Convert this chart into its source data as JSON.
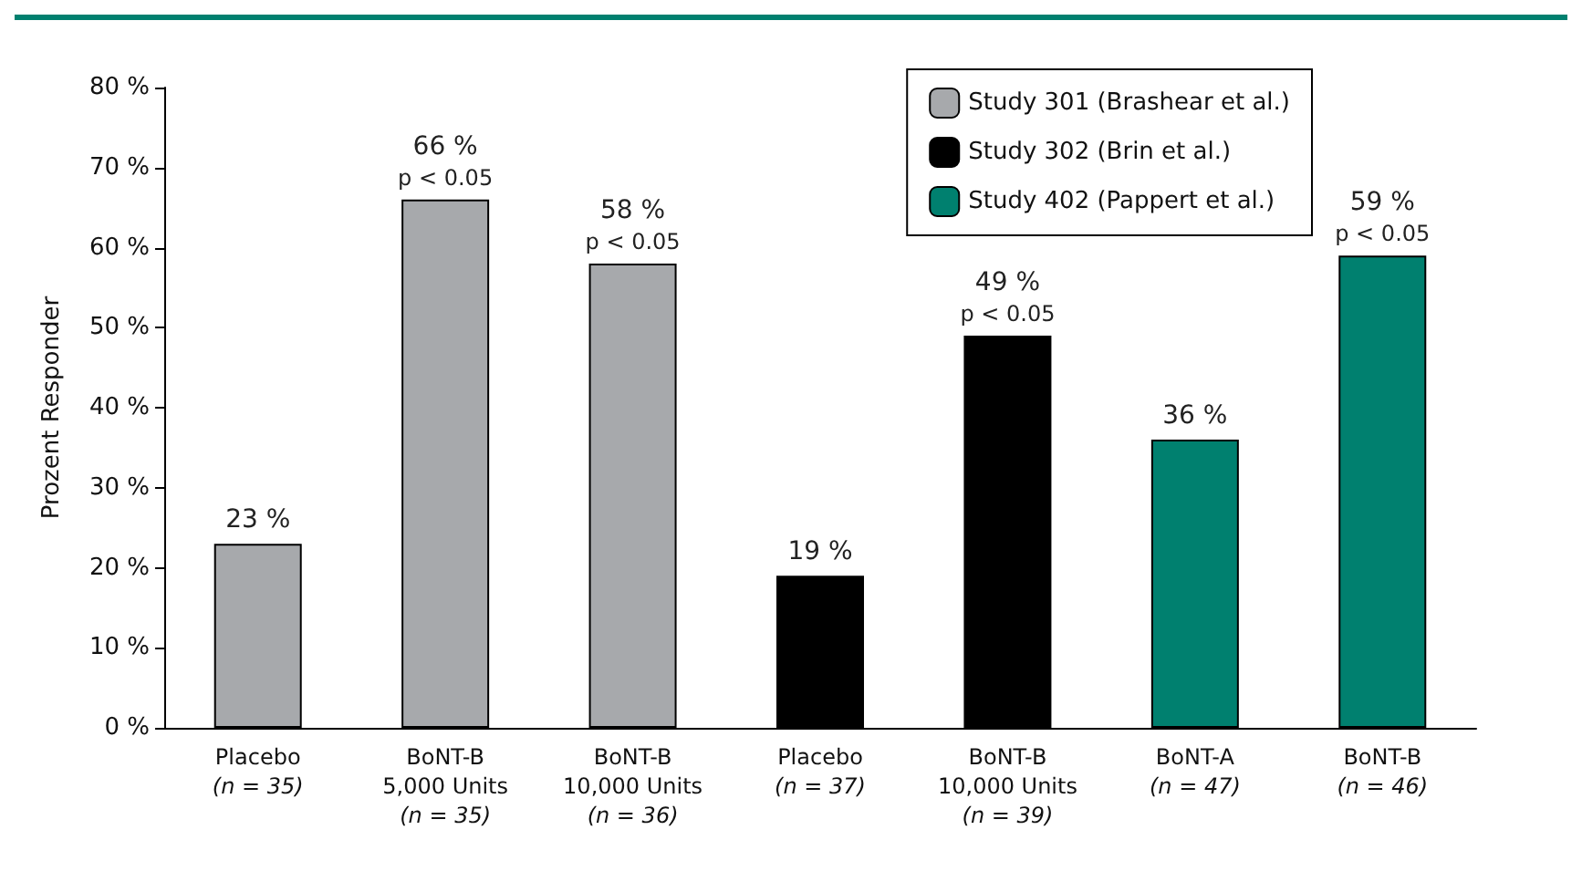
{
  "chart_data": {
    "type": "bar",
    "ylabel": "Prozent Responder",
    "categories": [
      "Placebo\n(n = 35)",
      "BoNT-B\n5,000 Units\n(n = 35)",
      "BoNT-B\n10,000 Units\n(n = 36)",
      "Placebo\n(n = 37)",
      "BoNT-B\n10,000 Units\n(n = 39)",
      "BoNT-A\n(n = 47)",
      "BoNT-B\n(n = 46)"
    ],
    "series": [
      {
        "name": "Study 301 (Brashear et al.)",
        "color": "#a7a9ac",
        "values": [
          23,
          66,
          58,
          null,
          null,
          null,
          null
        ],
        "value_labels": [
          "23 %",
          "66 %",
          "58 %",
          null,
          null,
          null,
          null
        ]
      },
      {
        "name": "Study 302 (Brin et al.)",
        "color": "#000000",
        "values": [
          null,
          null,
          null,
          19,
          49,
          null,
          null
        ],
        "value_labels": [
          null,
          null,
          null,
          "19 %",
          "49 %",
          null,
          null
        ]
      },
      {
        "name": "Study 402 (Pappert et al.)",
        "color": "#00806f",
        "values": [
          null,
          null,
          null,
          null,
          null,
          36,
          59
        ],
        "value_labels": [
          null,
          null,
          null,
          null,
          null,
          "36 %",
          "59 %"
        ]
      }
    ],
    "annotations": [
      {
        "text": "p < 0.05",
        "x": "BoNT-B\n5,000 Units\n(n = 35)",
        "y": 66
      },
      {
        "text": "p < 0.05",
        "x": "BoNT-B\n10,000 Units\n(n = 36)",
        "y": 58
      },
      {
        "text": "p < 0.05",
        "x": "BoNT-B\n10,000 Units\n(n = 39)",
        "y": 49
      },
      {
        "text": "p < 0.05",
        "x": "BoNT-B\n(n = 46)",
        "y": 59
      }
    ],
    "ylim": [
      0,
      80
    ],
    "yticks": [
      {
        "value": 0,
        "label": "0 %"
      },
      {
        "value": 10,
        "label": "10 %"
      },
      {
        "value": 20,
        "label": "20 %"
      },
      {
        "value": 30,
        "label": "30 %"
      },
      {
        "value": 40,
        "label": "40 %"
      },
      {
        "value": 50,
        "label": "50 %"
      },
      {
        "value": 60,
        "label": "60 %"
      },
      {
        "value": 70,
        "label": "70 %"
      },
      {
        "value": 80,
        "label": "80 %"
      }
    ],
    "grid": false,
    "legend": "top right"
  }
}
